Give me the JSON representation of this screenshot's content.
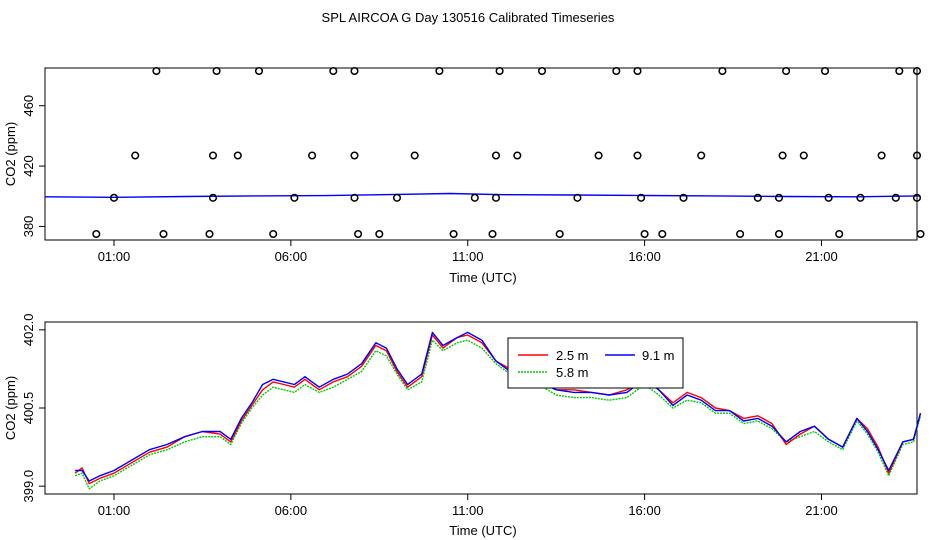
{
  "title": "SPL AIRCOA G  Day 130516  Calibrated Timeseries",
  "chart_data": [
    {
      "type": "scatter",
      "xlabel": "Time (UTC)",
      "ylabel": "CO2 (ppm)",
      "xlim": [
        -0.95,
        23.7
      ],
      "ylim": [
        371,
        485
      ],
      "x_ticks": [
        1,
        6,
        11,
        16,
        21
      ],
      "x_tick_labels": [
        "01:00",
        "06:00",
        "11:00",
        "16:00",
        "21:00"
      ],
      "y_ticks": [
        380,
        420,
        460
      ],
      "y_tick_labels": [
        "380",
        "420",
        "460"
      ],
      "grid": false,
      "legend": "none",
      "colors": {
        "points": "#000000",
        "line": "#0000ff",
        "axis": "#000000"
      },
      "points": [
        {
          "x": 1.0,
          "y": 399
        },
        {
          "x": 3.8,
          "y": 399
        },
        {
          "x": 6.1,
          "y": 399
        },
        {
          "x": 7.8,
          "y": 399
        },
        {
          "x": 9.0,
          "y": 399
        },
        {
          "x": 11.2,
          "y": 399
        },
        {
          "x": 11.8,
          "y": 399
        },
        {
          "x": 14.1,
          "y": 399
        },
        {
          "x": 15.9,
          "y": 399
        },
        {
          "x": 17.1,
          "y": 399
        },
        {
          "x": 19.2,
          "y": 399
        },
        {
          "x": 19.8,
          "y": 399
        },
        {
          "x": 21.2,
          "y": 399
        },
        {
          "x": 22.1,
          "y": 399
        },
        {
          "x": 23.1,
          "y": 399
        },
        {
          "x": 23.7,
          "y": 399
        },
        {
          "x": 1.6,
          "y": 427
        },
        {
          "x": 3.8,
          "y": 427
        },
        {
          "x": 4.5,
          "y": 427
        },
        {
          "x": 6.6,
          "y": 427
        },
        {
          "x": 7.8,
          "y": 427
        },
        {
          "x": 9.5,
          "y": 427
        },
        {
          "x": 11.8,
          "y": 427
        },
        {
          "x": 12.4,
          "y": 427
        },
        {
          "x": 14.7,
          "y": 427
        },
        {
          "x": 15.8,
          "y": 427
        },
        {
          "x": 17.6,
          "y": 427
        },
        {
          "x": 19.9,
          "y": 427
        },
        {
          "x": 20.5,
          "y": 427
        },
        {
          "x": 22.7,
          "y": 427
        },
        {
          "x": 23.7,
          "y": 427
        },
        {
          "x": 2.2,
          "y": 483
        },
        {
          "x": 3.9,
          "y": 483
        },
        {
          "x": 5.1,
          "y": 483
        },
        {
          "x": 7.2,
          "y": 483
        },
        {
          "x": 7.8,
          "y": 483
        },
        {
          "x": 10.2,
          "y": 483
        },
        {
          "x": 11.9,
          "y": 483
        },
        {
          "x": 13.1,
          "y": 483
        },
        {
          "x": 15.2,
          "y": 483
        },
        {
          "x": 15.8,
          "y": 483
        },
        {
          "x": 18.2,
          "y": 483
        },
        {
          "x": 20.0,
          "y": 483
        },
        {
          "x": 21.1,
          "y": 483
        },
        {
          "x": 23.2,
          "y": 483
        },
        {
          "x": 23.7,
          "y": 483
        },
        {
          "x": 0.5,
          "y": 375
        },
        {
          "x": 2.4,
          "y": 375
        },
        {
          "x": 3.7,
          "y": 375
        },
        {
          "x": 5.5,
          "y": 375
        },
        {
          "x": 7.9,
          "y": 375
        },
        {
          "x": 8.5,
          "y": 375
        },
        {
          "x": 10.6,
          "y": 375
        },
        {
          "x": 11.7,
          "y": 375
        },
        {
          "x": 13.6,
          "y": 375
        },
        {
          "x": 16.0,
          "y": 375
        },
        {
          "x": 16.5,
          "y": 375
        },
        {
          "x": 18.7,
          "y": 375
        },
        {
          "x": 19.8,
          "y": 375
        },
        {
          "x": 21.5,
          "y": 375
        },
        {
          "x": 23.8,
          "y": 375
        }
      ],
      "line": {
        "x": [
          -0.95,
          1,
          3,
          5,
          7,
          9,
          10.5,
          12,
          14,
          16,
          18,
          20,
          22,
          23.8
        ],
        "y": [
          399.6,
          399.3,
          399.8,
          400.2,
          400.4,
          401.2,
          401.8,
          401.0,
          400.8,
          400.5,
          400.2,
          399.8,
          399.6,
          400.2
        ]
      }
    },
    {
      "type": "line",
      "xlabel": "Time (UTC)",
      "ylabel": "CO2 (ppm)",
      "xlim": [
        -0.95,
        23.7
      ],
      "ylim": [
        398.85,
        402.15
      ],
      "x_ticks": [
        1,
        6,
        11,
        16,
        21
      ],
      "x_tick_labels": [
        "01:00",
        "06:00",
        "11:00",
        "16:00",
        "21:00"
      ],
      "y_ticks": [
        399.0,
        400.5,
        402.0
      ],
      "y_tick_labels": [
        "399.0",
        "400.5",
        "402.0"
      ],
      "grid": false,
      "legend": "top-center",
      "x": [
        -0.1,
        0.1,
        0.3,
        0.6,
        1.0,
        1.5,
        2.0,
        2.5,
        3.0,
        3.5,
        4.0,
        4.3,
        4.6,
        4.9,
        5.2,
        5.5,
        5.8,
        6.1,
        6.4,
        6.8,
        7.2,
        7.6,
        8.0,
        8.4,
        8.7,
        9.0,
        9.3,
        9.7,
        10.0,
        10.3,
        10.7,
        11.0,
        11.4,
        11.8,
        12.2,
        12.6,
        13.0,
        13.5,
        14.0,
        14.5,
        15.0,
        15.5,
        16.0,
        16.4,
        16.8,
        17.2,
        17.6,
        18.0,
        18.4,
        18.8,
        19.2,
        19.6,
        20.0,
        20.4,
        20.8,
        21.2,
        21.6,
        22.0,
        22.3,
        22.6,
        22.9,
        23.3,
        23.6,
        23.8
      ],
      "series": [
        {
          "name": "2.5 m",
          "color": "#ff0000",
          "values": [
            399.25,
            399.35,
            399.05,
            399.15,
            399.25,
            399.45,
            399.65,
            399.75,
            399.95,
            400.05,
            400.0,
            399.85,
            400.25,
            400.55,
            400.85,
            401.0,
            400.95,
            400.9,
            401.05,
            400.85,
            401.0,
            401.1,
            401.3,
            401.7,
            401.6,
            401.2,
            400.9,
            401.1,
            401.9,
            401.65,
            401.85,
            401.9,
            401.75,
            401.4,
            401.25,
            401.2,
            401.05,
            400.85,
            400.85,
            400.8,
            400.75,
            400.85,
            401.05,
            400.85,
            400.6,
            400.8,
            400.7,
            400.5,
            400.45,
            400.3,
            400.35,
            400.2,
            399.8,
            400.0,
            400.15,
            399.9,
            399.75,
            400.3,
            400.1,
            399.75,
            399.25,
            399.85,
            399.9,
            400.4
          ]
        },
        {
          "name": "5.8 m",
          "color": "#00cc00",
          "values": [
            399.2,
            399.25,
            398.95,
            399.1,
            399.2,
            399.4,
            399.6,
            399.7,
            399.85,
            399.95,
            399.95,
            399.8,
            400.2,
            400.5,
            400.75,
            400.9,
            400.85,
            400.8,
            400.95,
            400.8,
            400.9,
            401.05,
            401.2,
            401.6,
            401.5,
            401.15,
            400.85,
            401.0,
            401.8,
            401.6,
            401.75,
            401.8,
            401.65,
            401.35,
            401.15,
            401.1,
            400.95,
            400.75,
            400.7,
            400.7,
            400.65,
            400.7,
            400.95,
            400.75,
            400.5,
            400.65,
            400.6,
            400.4,
            400.4,
            400.2,
            400.25,
            400.1,
            399.85,
            399.95,
            400.05,
            399.85,
            399.7,
            400.25,
            400.0,
            399.65,
            399.2,
            399.8,
            399.85,
            400.35
          ]
        },
        {
          "name": "9.1 m",
          "color": "#0000ff",
          "values": [
            399.3,
            399.3,
            399.1,
            399.2,
            399.3,
            399.5,
            399.7,
            399.8,
            399.95,
            400.05,
            400.05,
            399.9,
            400.3,
            400.6,
            400.95,
            401.05,
            401.0,
            400.95,
            401.1,
            400.9,
            401.05,
            401.15,
            401.35,
            401.75,
            401.65,
            401.25,
            400.95,
            401.15,
            401.95,
            401.7,
            401.85,
            401.95,
            401.8,
            401.4,
            401.2,
            401.15,
            401.0,
            400.85,
            400.8,
            400.8,
            400.75,
            400.8,
            401.05,
            400.85,
            400.55,
            400.75,
            400.65,
            400.45,
            400.45,
            400.25,
            400.3,
            400.15,
            399.85,
            400.05,
            400.15,
            399.9,
            399.75,
            400.3,
            400.05,
            399.7,
            399.3,
            399.85,
            399.9,
            400.4
          ]
        }
      ]
    }
  ]
}
